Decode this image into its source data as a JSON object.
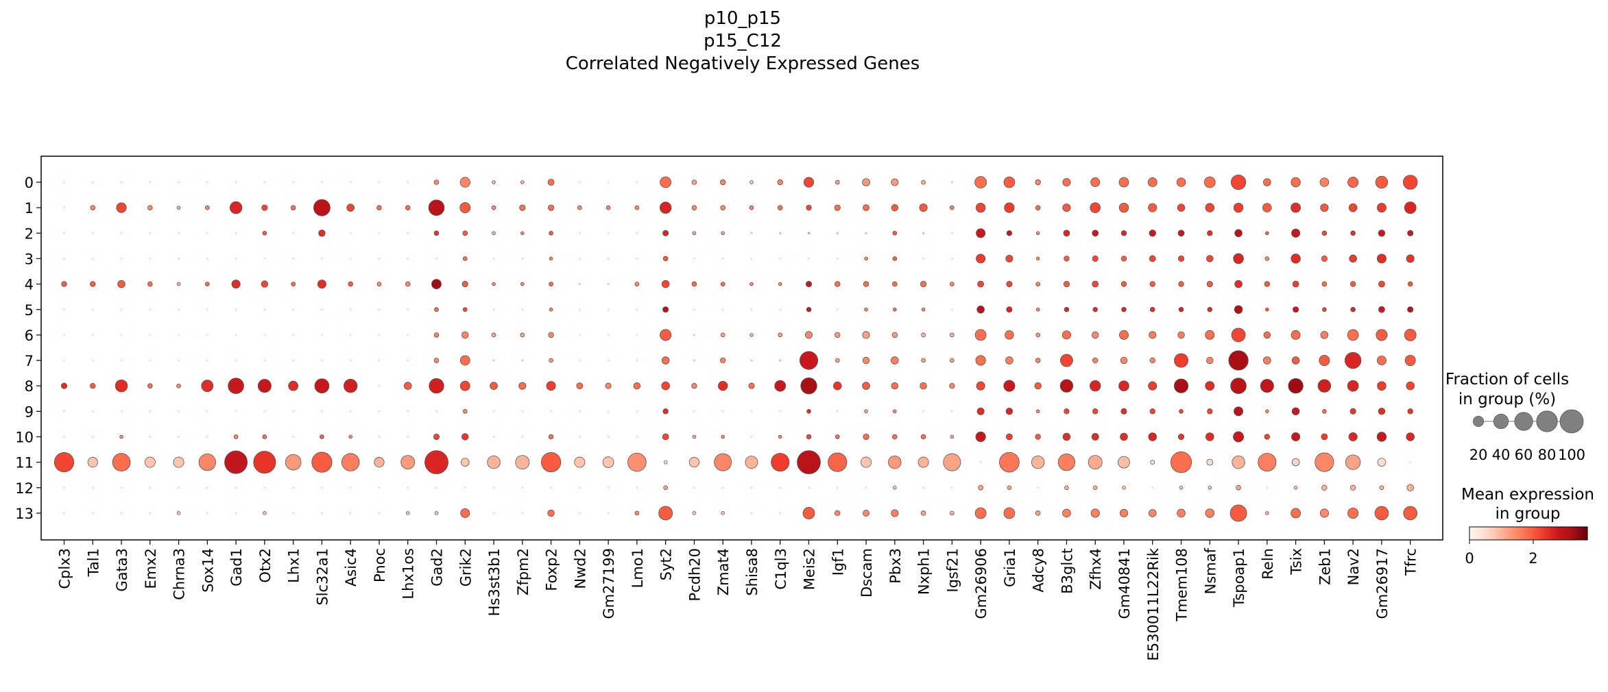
{
  "chart_data": {
    "type": "dotplot",
    "title_lines": [
      "p10_p15",
      "p15_C12",
      "Correlated Negatively Expressed Genes"
    ],
    "genes": [
      "Cplx3",
      "Tal1",
      "Gata3",
      "Emx2",
      "Chrna3",
      "Sox14",
      "Gad1",
      "Otx2",
      "Lhx1",
      "Slc32a1",
      "Asic4",
      "Pnoc",
      "Lhx1os",
      "Gad2",
      "Grik2",
      "Hs3st3b1",
      "Zfpm2",
      "Foxp2",
      "Nwd2",
      "Gm27199",
      "Lmo1",
      "Syt2",
      "Pcdh20",
      "Zmat4",
      "Shisa8",
      "C1ql3",
      "Meis2",
      "Igf1",
      "Dscam",
      "Pbx3",
      "Nxph1",
      "Igsf21",
      "Gm26906",
      "Gria1",
      "Adcy8",
      "B3glct",
      "Zfhx4",
      "Gm40841",
      "E530011L22Rik",
      "Tmem108",
      "Nsmaf",
      "Tspoap1",
      "Reln",
      "Tsix",
      "Zeb1",
      "Nav2",
      "Gm26917",
      "Tfrc"
    ],
    "groups": [
      "0",
      "1",
      "2",
      "3",
      "4",
      "5",
      "6",
      "7",
      "8",
      "9",
      "10",
      "11",
      "12",
      "13"
    ],
    "size_legend": {
      "title_lines": [
        "Fraction of cells",
        "in group (%)"
      ],
      "values": [
        20,
        40,
        60,
        80,
        100
      ],
      "tick_labels": [
        "20",
        "40",
        "60",
        "80",
        "100"
      ]
    },
    "color_legend": {
      "title_lines": [
        "Mean expression",
        "in group"
      ],
      "range": [
        0,
        3.7
      ],
      "tick_labels": [
        "0",
        "2"
      ],
      "colormap": "Reds"
    },
    "fraction": [
      [
        1,
        1,
        1,
        1,
        1,
        1,
        1,
        1,
        1,
        1,
        1,
        1,
        1,
        4,
        18,
        2,
        2,
        7,
        1,
        1,
        1,
        22,
        4,
        5,
        2,
        5,
        18,
        3,
        10,
        9,
        3,
        1,
        25,
        22,
        5,
        11,
        15,
        17,
        15,
        14,
        22,
        40,
        10,
        16,
        14,
        20,
        27,
        37
      ],
      [
        1,
        4,
        18,
        4,
        2,
        3,
        27,
        6,
        4,
        50,
        10,
        4,
        4,
        45,
        20,
        3,
        6,
        6,
        3,
        3,
        3,
        24,
        4,
        4,
        3,
        4,
        5,
        6,
        7,
        8,
        11,
        3,
        16,
        18,
        4,
        11,
        19,
        16,
        13,
        10,
        14,
        16,
        14,
        17,
        11,
        12,
        15,
        25
      ],
      [
        1,
        1,
        1,
        1,
        1,
        1,
        1,
        3,
        1,
        8,
        1,
        1,
        1,
        4,
        4,
        2,
        2,
        3,
        1,
        1,
        1,
        6,
        2,
        2,
        1,
        1,
        1,
        1,
        1,
        3,
        1,
        1,
        15,
        5,
        2,
        7,
        7,
        5,
        8,
        7,
        5,
        10,
        2,
        13,
        4,
        4,
        8,
        6
      ],
      [
        1,
        1,
        1,
        1,
        1,
        1,
        1,
        1,
        1,
        1,
        1,
        1,
        1,
        1,
        3,
        1,
        1,
        2,
        1,
        1,
        1,
        4,
        1,
        1,
        1,
        1,
        1,
        1,
        2,
        3,
        1,
        1,
        15,
        9,
        2,
        5,
        6,
        5,
        7,
        6,
        8,
        19,
        3,
        16,
        6,
        10,
        15,
        11
      ],
      [
        5,
        5,
        10,
        4,
        2,
        3,
        13,
        8,
        3,
        13,
        4,
        3,
        4,
        17,
        6,
        2,
        2,
        3,
        1,
        1,
        3,
        10,
        4,
        3,
        2,
        2,
        6,
        5,
        5,
        4,
        6,
        3,
        7,
        6,
        3,
        6,
        7,
        5,
        5,
        5,
        6,
        10,
        5,
        7,
        4,
        5,
        7,
        4
      ],
      [
        1,
        1,
        1,
        1,
        1,
        1,
        1,
        1,
        1,
        1,
        1,
        1,
        1,
        3,
        3,
        1,
        1,
        2,
        1,
        1,
        1,
        6,
        1,
        1,
        1,
        1,
        4,
        1,
        2,
        2,
        2,
        1,
        10,
        6,
        2,
        4,
        4,
        4,
        4,
        4,
        4,
        12,
        2,
        6,
        3,
        4,
        7,
        6
      ],
      [
        1,
        1,
        1,
        1,
        1,
        1,
        1,
        1,
        1,
        1,
        1,
        1,
        1,
        4,
        8,
        3,
        3,
        5,
        1,
        1,
        1,
        23,
        1,
        3,
        2,
        3,
        9,
        5,
        9,
        5,
        3,
        3,
        22,
        14,
        3,
        13,
        8,
        15,
        9,
        8,
        15,
        35,
        8,
        15,
        10,
        22,
        23,
        25
      ],
      [
        1,
        1,
        1,
        1,
        1,
        1,
        1,
        1,
        1,
        1,
        1,
        1,
        1,
        4,
        17,
        1,
        1,
        3,
        1,
        1,
        1,
        10,
        1,
        5,
        1,
        1,
        60,
        3,
        8,
        10,
        3,
        3,
        18,
        10,
        4,
        28,
        5,
        8,
        5,
        35,
        8,
        70,
        10,
        10,
        20,
        48,
        15,
        20
      ],
      [
        6,
        5,
        27,
        4,
        3,
        25,
        45,
        32,
        17,
        38,
        33,
        1,
        10,
        40,
        17,
        10,
        9,
        15,
        7,
        6,
        8,
        12,
        5,
        16,
        6,
        22,
        48,
        12,
        10,
        8,
        8,
        5,
        13,
        23,
        8,
        30,
        21,
        19,
        13,
        36,
        15,
        45,
        32,
        40,
        30,
        22,
        14,
        12
      ],
      [
        1,
        1,
        1,
        1,
        1,
        1,
        1,
        1,
        1,
        1,
        1,
        1,
        1,
        1,
        3,
        1,
        1,
        1,
        1,
        1,
        1,
        5,
        1,
        1,
        1,
        1,
        3,
        1,
        2,
        2,
        1,
        1,
        9,
        8,
        2,
        5,
        5,
        6,
        5,
        3,
        5,
        15,
        2,
        10,
        3,
        6,
        8,
        5
      ],
      [
        1,
        1,
        2,
        1,
        1,
        1,
        3,
        3,
        1,
        3,
        2,
        1,
        1,
        6,
        8,
        1,
        1,
        4,
        1,
        1,
        1,
        7,
        2,
        2,
        1,
        2,
        4,
        3,
        6,
        4,
        4,
        2,
        18,
        7,
        5,
        10,
        9,
        10,
        12,
        6,
        12,
        20,
        5,
        13,
        7,
        13,
        16,
        12
      ],
      [
        70,
        18,
        58,
        20,
        20,
        52,
        95,
        90,
        45,
        75,
        57,
        18,
        35,
        100,
        12,
        30,
        35,
        70,
        20,
        22,
        62,
        2,
        18,
        55,
        28,
        60,
        100,
        65,
        20,
        30,
        20,
        55,
        1,
        72,
        30,
        52,
        35,
        25,
        3,
        80,
        7,
        30,
        60,
        10,
        65,
        40,
        12,
        1
      ],
      [
        1,
        1,
        1,
        1,
        1,
        1,
        1,
        1,
        1,
        1,
        1,
        1,
        1,
        1,
        1,
        1,
        1,
        1,
        1,
        1,
        1,
        3,
        1,
        1,
        1,
        1,
        1,
        1,
        1,
        2,
        1,
        1,
        4,
        3,
        1,
        3,
        3,
        2,
        1,
        2,
        2,
        4,
        1,
        2,
        5,
        5,
        3,
        8
      ],
      [
        1,
        1,
        1,
        1,
        2,
        1,
        1,
        2,
        1,
        1,
        1,
        1,
        2,
        2,
        15,
        1,
        1,
        8,
        1,
        1,
        3,
        35,
        2,
        2,
        1,
        1,
        25,
        5,
        7,
        9,
        4,
        3,
        22,
        22,
        4,
        12,
        13,
        11,
        10,
        12,
        14,
        50,
        2,
        17,
        13,
        20,
        34,
        34
      ]
    ],
    "expression": [
      [
        0.5,
        0.5,
        0.5,
        0.5,
        0.5,
        0.5,
        0.5,
        0.5,
        0.5,
        0.5,
        0.5,
        0.5,
        0.5,
        1.5,
        1.5,
        1.0,
        1.0,
        1.8,
        0.5,
        0.5,
        0.5,
        1.8,
        1.2,
        1.5,
        0.8,
        1.5,
        2.2,
        1.2,
        1.3,
        1.3,
        1.0,
        0.8,
        1.8,
        2.0,
        1.5,
        1.8,
        1.8,
        1.8,
        1.8,
        1.8,
        1.8,
        2.2,
        1.8,
        1.8,
        1.6,
        1.9,
        2.0,
        2.2
      ],
      [
        0.5,
        1.5,
        2.2,
        1.5,
        1.0,
        1.5,
        2.6,
        2.2,
        1.8,
        3.0,
        2.2,
        1.8,
        1.8,
        3.0,
        2.0,
        1.5,
        1.8,
        1.8,
        1.5,
        1.5,
        1.5,
        2.6,
        1.5,
        1.5,
        1.5,
        1.8,
        2.2,
        1.8,
        1.8,
        2.0,
        2.0,
        1.5,
        2.2,
        2.3,
        1.8,
        2.0,
        2.2,
        2.0,
        2.0,
        2.2,
        2.2,
        2.3,
        2.0,
        2.5,
        2.0,
        2.2,
        2.3,
        2.6
      ],
      [
        0.5,
        0.5,
        0.5,
        0.5,
        0.5,
        0.5,
        0.5,
        2.0,
        0.5,
        2.5,
        0.5,
        0.5,
        0.5,
        2.4,
        2.0,
        1.0,
        1.5,
        2.0,
        0.5,
        0.5,
        0.5,
        2.6,
        1.2,
        1.2,
        0.8,
        1.0,
        1.5,
        1.0,
        1.0,
        2.0,
        1.0,
        0.5,
        2.8,
        2.8,
        1.5,
        2.6,
        2.8,
        2.6,
        2.8,
        2.8,
        2.5,
        3.0,
        2.0,
        2.8,
        2.2,
        2.5,
        2.8,
        2.8
      ],
      [
        0.5,
        0.5,
        0.5,
        0.5,
        0.5,
        0.5,
        0.5,
        0.5,
        0.5,
        0.5,
        0.5,
        0.5,
        0.5,
        0.5,
        1.8,
        0.5,
        0.5,
        1.5,
        0.5,
        0.5,
        0.5,
        2.0,
        0.5,
        0.5,
        0.5,
        0.5,
        0.5,
        0.5,
        1.5,
        2.0,
        0.5,
        0.5,
        2.3,
        2.2,
        1.5,
        2.0,
        2.2,
        2.0,
        2.2,
        2.2,
        2.2,
        2.6,
        1.5,
        2.5,
        2.0,
        2.3,
        2.5,
        2.4
      ],
      [
        2.0,
        2.0,
        2.0,
        1.8,
        1.0,
        1.8,
        2.5,
        2.2,
        1.8,
        2.5,
        2.0,
        1.5,
        1.5,
        3.3,
        2.0,
        1.5,
        1.5,
        1.8,
        0.8,
        0.8,
        1.5,
        2.2,
        1.8,
        1.8,
        1.5,
        1.5,
        2.8,
        1.8,
        1.8,
        1.8,
        1.8,
        1.5,
        2.2,
        2.2,
        1.5,
        2.0,
        2.2,
        2.0,
        2.0,
        2.0,
        2.0,
        2.5,
        2.0,
        2.3,
        1.8,
        2.0,
        2.2,
        2.0
      ],
      [
        0.5,
        0.5,
        0.5,
        0.5,
        0.5,
        0.5,
        0.5,
        0.5,
        0.5,
        0.5,
        0.5,
        0.5,
        0.5,
        1.8,
        2.2,
        0.5,
        0.5,
        1.5,
        0.5,
        0.5,
        0.5,
        3.0,
        0.5,
        0.5,
        0.5,
        0.5,
        2.8,
        0.5,
        1.5,
        1.8,
        1.5,
        0.5,
        3.0,
        2.6,
        1.5,
        2.6,
        2.5,
        2.6,
        2.5,
        2.6,
        2.5,
        3.1,
        2.0,
        2.8,
        2.2,
        2.6,
        2.8,
        3.0
      ],
      [
        0.5,
        0.5,
        0.5,
        0.5,
        0.5,
        0.5,
        0.5,
        0.5,
        0.5,
        0.5,
        0.5,
        0.5,
        0.5,
        1.5,
        1.5,
        1.2,
        1.2,
        1.5,
        0.5,
        0.5,
        0.5,
        2.0,
        0.8,
        1.2,
        1.0,
        1.2,
        1.5,
        1.3,
        1.2,
        1.3,
        1.0,
        1.0,
        1.8,
        1.8,
        1.3,
        1.8,
        1.5,
        1.8,
        1.6,
        1.6,
        1.8,
        2.2,
        1.8,
        1.8,
        1.6,
        1.8,
        2.0,
        2.0
      ],
      [
        0.5,
        0.5,
        0.5,
        0.5,
        0.5,
        0.5,
        0.5,
        0.5,
        0.5,
        0.5,
        0.5,
        0.5,
        0.5,
        1.5,
        1.8,
        0.8,
        0.8,
        1.3,
        0.5,
        0.5,
        0.5,
        1.8,
        0.8,
        1.5,
        0.8,
        1.0,
        2.8,
        1.2,
        1.5,
        1.6,
        1.2,
        1.2,
        1.8,
        1.6,
        1.5,
        2.2,
        1.5,
        1.5,
        1.5,
        2.3,
        1.5,
        3.2,
        1.6,
        2.0,
        2.0,
        2.6,
        1.8,
        2.0
      ],
      [
        2.5,
        2.0,
        2.5,
        1.8,
        1.5,
        2.5,
        2.8,
        2.8,
        2.5,
        2.8,
        2.7,
        0.5,
        2.0,
        2.7,
        2.2,
        2.0,
        1.8,
        2.3,
        1.8,
        1.5,
        1.8,
        2.2,
        1.5,
        2.5,
        1.8,
        2.8,
        3.2,
        2.4,
        2.0,
        1.8,
        1.8,
        1.5,
        2.2,
        2.8,
        2.0,
        3.0,
        2.6,
        2.6,
        2.3,
        3.2,
        2.5,
        3.0,
        2.9,
        3.3,
        2.7,
        2.6,
        2.3,
        2.2
      ],
      [
        0.5,
        0.5,
        0.5,
        0.5,
        0.5,
        0.5,
        0.5,
        0.5,
        0.5,
        0.5,
        0.5,
        0.5,
        0.5,
        0.5,
        1.5,
        0.5,
        0.5,
        0.5,
        0.5,
        0.5,
        0.5,
        2.5,
        0.5,
        0.5,
        0.5,
        0.5,
        2.5,
        0.5,
        1.2,
        1.5,
        0.5,
        0.5,
        2.5,
        2.6,
        1.5,
        2.2,
        2.2,
        2.5,
        2.2,
        2.2,
        2.2,
        3.0,
        1.5,
        2.8,
        1.8,
        2.4,
        2.5,
        2.4
      ],
      [
        0.5,
        0.5,
        1.5,
        0.5,
        0.5,
        0.5,
        1.5,
        1.8,
        0.5,
        2.0,
        1.5,
        0.5,
        0.5,
        2.2,
        2.4,
        0.5,
        0.5,
        1.8,
        0.5,
        0.5,
        0.5,
        2.2,
        1.2,
        1.5,
        0.5,
        1.5,
        2.2,
        1.8,
        1.8,
        1.8,
        1.8,
        1.2,
        2.8,
        2.3,
        2.0,
        2.5,
        2.5,
        2.5,
        2.6,
        2.4,
        2.5,
        2.8,
        2.2,
        2.8,
        2.3,
        2.6,
        2.8,
        2.6
      ],
      [
        2.2,
        0.8,
        1.8,
        0.8,
        0.8,
        1.5,
        2.9,
        2.4,
        1.3,
        2.0,
        1.6,
        1.0,
        1.3,
        2.6,
        0.8,
        1.0,
        1.0,
        2.0,
        0.8,
        0.8,
        1.4,
        0.5,
        0.8,
        1.5,
        1.0,
        2.3,
        3.0,
        1.9,
        0.8,
        1.3,
        1.0,
        1.2,
        0.5,
        1.7,
        1.0,
        1.6,
        1.1,
        0.9,
        0.3,
        1.8,
        0.5,
        1.0,
        1.6,
        0.6,
        1.5,
        1.2,
        0.5,
        0.5
      ],
      [
        0.5,
        0.5,
        0.5,
        0.5,
        0.5,
        0.5,
        0.5,
        0.5,
        0.5,
        0.5,
        0.5,
        0.5,
        0.5,
        0.5,
        0.5,
        0.5,
        0.5,
        0.5,
        0.5,
        0.5,
        0.5,
        1.2,
        0.5,
        0.5,
        0.5,
        0.5,
        0.5,
        0.5,
        0.5,
        0.8,
        0.5,
        0.5,
        1.2,
        1.2,
        0.5,
        1.0,
        1.0,
        0.8,
        0.5,
        0.8,
        0.8,
        1.2,
        0.5,
        0.8,
        1.0,
        1.0,
        1.0,
        1.0
      ],
      [
        0.5,
        0.5,
        0.5,
        0.5,
        0.8,
        0.5,
        0.5,
        0.8,
        0.5,
        0.5,
        0.5,
        0.5,
        0.8,
        0.8,
        1.8,
        0.5,
        0.5,
        1.8,
        0.5,
        0.5,
        1.5,
        2.0,
        0.8,
        0.8,
        0.5,
        0.5,
        2.0,
        1.5,
        1.5,
        1.6,
        1.2,
        1.0,
        1.8,
        1.8,
        1.2,
        1.6,
        1.6,
        1.6,
        1.5,
        1.6,
        1.6,
        2.0,
        1.0,
        1.8,
        1.5,
        1.8,
        2.0,
        2.0
      ]
    ]
  }
}
